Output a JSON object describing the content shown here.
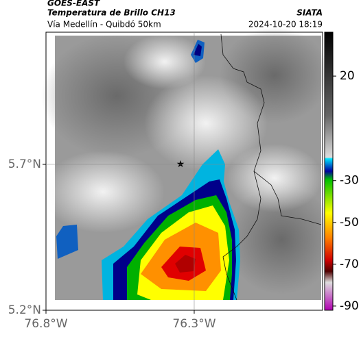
{
  "header": {
    "source": "GOES-EAST",
    "title": "Temperatura de Brillo CH13",
    "org": "SIATA",
    "subtitle": "Vía Medellín - Quibdó 50km",
    "datetime": "2024-10-20 18:19"
  },
  "map": {
    "latlim": [
      5.2,
      6.153
    ],
    "lonlim": [
      -76.8,
      -75.867
    ],
    "latticks": [
      {
        "value": 5.2,
        "label": "5.2°N"
      },
      {
        "value": 5.7,
        "label": "5.7°N"
      }
    ],
    "lonticks": [
      {
        "value": -76.8,
        "label": "76.8°W"
      },
      {
        "value": -76.3,
        "label": "76.3°W"
      }
    ]
  },
  "colorbar": {
    "clim": [
      -92,
      41
    ],
    "ticks": [
      20,
      -30,
      -50,
      -70,
      -90
    ]
  }
}
